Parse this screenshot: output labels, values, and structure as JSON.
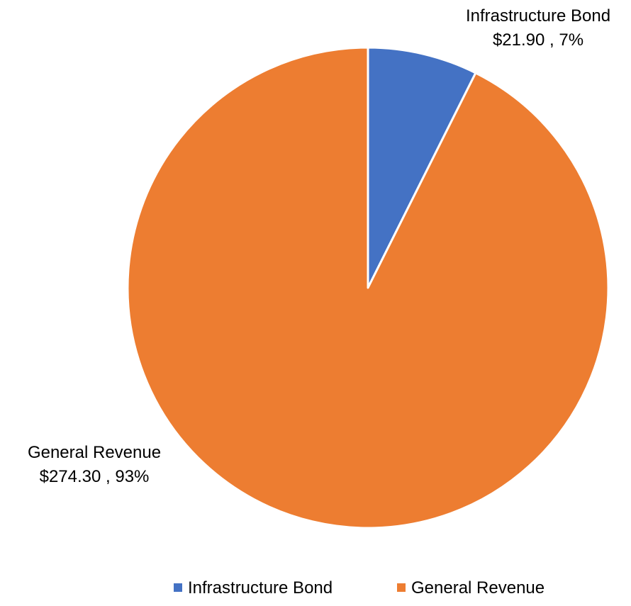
{
  "chart_data": {
    "type": "pie",
    "categories": [
      "Infrastructure Bond",
      "General Revenue"
    ],
    "values": [
      21.9,
      274.3
    ],
    "percent_labels": [
      "7%",
      "93%"
    ],
    "value_labels": [
      "$21.90",
      "$274.30"
    ],
    "colors": [
      "#4472C4",
      "#ED7D31"
    ],
    "start_angle": "12 o'clock, clockwise",
    "legend_position": "bottom"
  }
}
